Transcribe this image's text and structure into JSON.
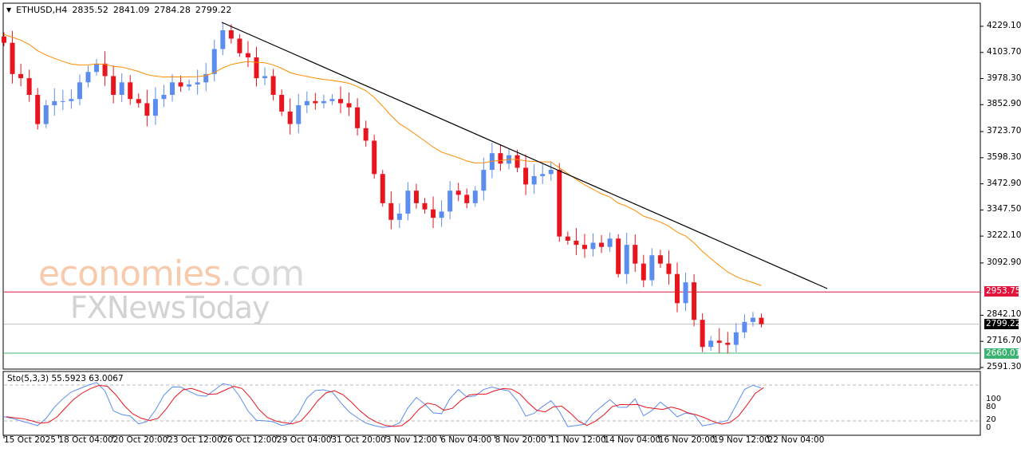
{
  "header": {
    "symbol": "ETHUSD,H4",
    "open": "2835.52",
    "high": "2841.09",
    "low": "2784.28",
    "close": "2799.22"
  },
  "price_axis": [
    "4229.10",
    "4103.70",
    "3978.30",
    "3852.90",
    "3723.70",
    "3598.30",
    "3472.90",
    "3347.50",
    "3222.10",
    "3092.90",
    "2842.10",
    "2716.70",
    "2591.30"
  ],
  "levels": {
    "resistance": {
      "label": "2953.75",
      "color": "#e0163c"
    },
    "current": {
      "label": "2799.22",
      "color": "#000000"
    },
    "support": {
      "label": "2660.01",
      "color": "#3cb371"
    }
  },
  "time_axis": [
    "15 Oct 2025",
    "18 Oct 04:00",
    "20 Oct 20:00",
    "23 Oct 12:00",
    "26 Oct 12:00",
    "29 Oct 04:00",
    "31 Oct 20:00",
    "3 Nov 12:00",
    "6 Nov 04:00",
    "8 Nov 20:00",
    "11 Nov 12:00",
    "14 Nov 04:00",
    "16 Nov 20:00",
    "19 Nov 12:00",
    "22 Nov 04:00"
  ],
  "stochastic": {
    "label": "Sto(5,3,3) 55.5923 63.0067",
    "levels": [
      "100",
      "80",
      "20",
      "0"
    ]
  },
  "watermark": {
    "brand1": "economies",
    "brand1_suffix": ".com",
    "brand2": "FXNewsToday"
  },
  "colors": {
    "bull": "#5b8def",
    "bear": "#e8141e",
    "ma": "#ff8c00",
    "trend": "#000000"
  },
  "chart_data": {
    "type": "candlestick",
    "ylim": [
      2591.3,
      4229.1
    ],
    "closes": [
      4150,
      4000,
      3980,
      3900,
      3760,
      3850,
      3870,
      3870,
      3880,
      3960,
      4010,
      4050,
      3990,
      3900,
      3960,
      3880,
      3860,
      3800,
      3880,
      3900,
      3960,
      3940,
      3950,
      3960,
      4000,
      4120,
      4210,
      4170,
      4100,
      4080,
      3980,
      3990,
      3900,
      3820,
      3760,
      3850,
      3870,
      3860,
      3870,
      3880,
      3860,
      3840,
      3740,
      3680,
      3520,
      3380,
      3300,
      3330,
      3440,
      3380,
      3350,
      3310,
      3340,
      3440,
      3420,
      3380,
      3440,
      3540,
      3620,
      3570,
      3610,
      3550,
      3470,
      3510,
      3520,
      3540,
      3220,
      3200,
      3180,
      3160,
      3190,
      3170,
      3210,
      3040,
      3180,
      3090,
      3010,
      3130,
      3090,
      3040,
      2900,
      3000,
      2820,
      2690,
      2720,
      2710,
      2700,
      2760,
      2810,
      2830,
      2799.22
    ]
  }
}
